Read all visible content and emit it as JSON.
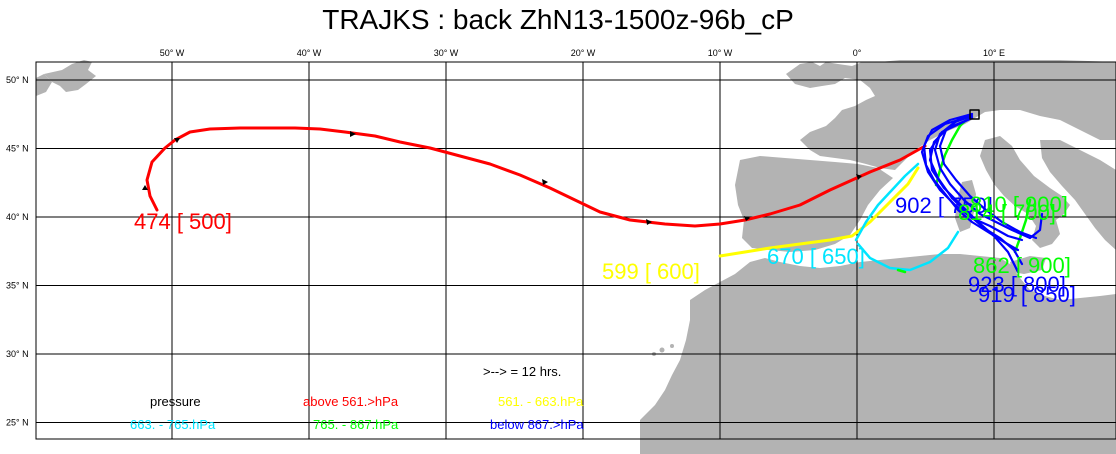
{
  "title": "TRAJKS : back ZhN13-1500z-96b_cP",
  "axes": {
    "lon_ticks": [
      {
        "lon": -50,
        "label": "50° W"
      },
      {
        "lon": -40,
        "label": "40° W"
      },
      {
        "lon": -30,
        "label": "30° W"
      },
      {
        "lon": -20,
        "label": "20° W"
      },
      {
        "lon": -10,
        "label": "10° W"
      },
      {
        "lon": 0,
        "label": "0°"
      },
      {
        "lon": 10,
        "label": "10° E"
      }
    ],
    "lat_ticks": [
      {
        "lat": 50,
        "label": "50° N"
      },
      {
        "lat": 45,
        "label": "45° N"
      },
      {
        "lat": 40,
        "label": "40° N"
      },
      {
        "lat": 35,
        "label": "35° N"
      },
      {
        "lat": 30,
        "label": "30° N"
      },
      {
        "lat": 25,
        "label": "25° N"
      }
    ]
  },
  "trajectory_labels": [
    {
      "text": "474 [ 500]",
      "color": "#ff0000"
    },
    {
      "text": "599 [ 600]",
      "color": "#ffff00"
    },
    {
      "text": "670 [ 650]",
      "color": "#00e5ff"
    },
    {
      "text": "902 [ 750]",
      "color": "#0000ff"
    },
    {
      "text": "810 [ 900]",
      "color": "#00ff00"
    },
    {
      "text": "814 [ 700]",
      "color": "#00ff00"
    },
    {
      "text": "862 [ 900]",
      "color": "#00ff00"
    },
    {
      "text": "923 [ 800]",
      "color": "#0000ff"
    },
    {
      "text": "919 [ 850]",
      "color": "#0000ff"
    }
  ],
  "legend": {
    "arrow_note": ">--> = 12 hrs.",
    "pressure_label": "pressure",
    "entries": [
      {
        "text": "above   561.>hPa",
        "color": "#ff0000"
      },
      {
        "text": "561. -    663.hPa",
        "color": "#ffff00"
      },
      {
        "text": "663. -    765.hPa",
        "color": "#00e5ff"
      },
      {
        "text": "765. -    867.hPa",
        "color": "#00ff00"
      },
      {
        "text": "below   867.>hPa",
        "color": "#0000ff"
      }
    ]
  }
}
